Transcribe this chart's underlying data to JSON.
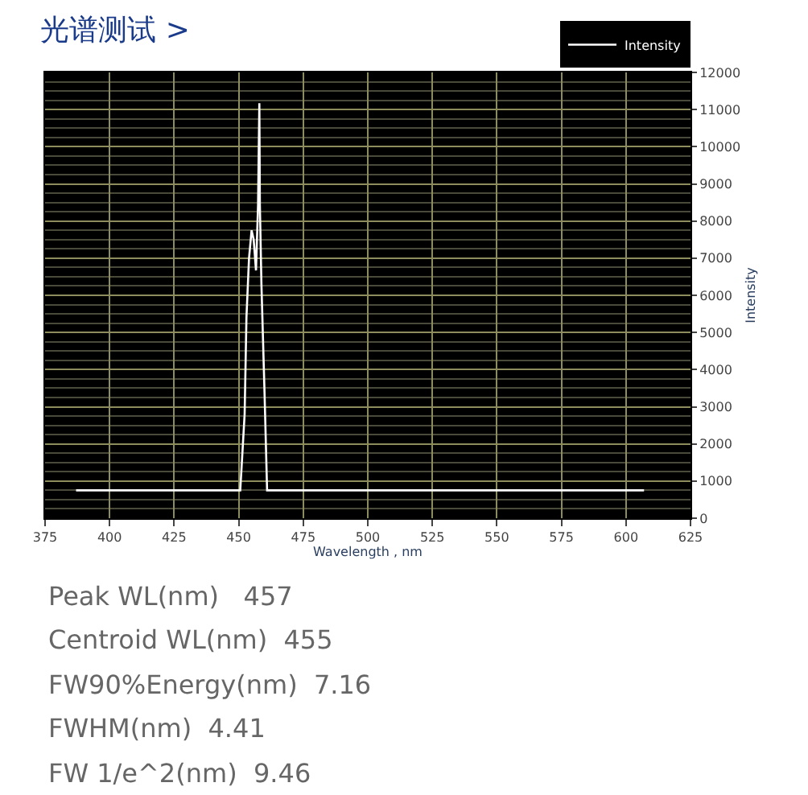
{
  "chart_data": {
    "type": "line",
    "title": "光谱测试 >",
    "xlabel": "Wavelength , nm",
    "ylabel": "Intensity",
    "x": [
      387,
      420,
      445,
      450.6,
      452.3,
      453,
      454,
      455,
      455.8,
      456.7,
      457.5,
      458,
      458.2,
      458.8,
      460,
      461,
      480,
      520,
      560,
      607
    ],
    "series": [
      {
        "name": "Intensity",
        "color": "#ffffff",
        "values": [
          750,
          750,
          750,
          750,
          2800,
          5400,
          7000,
          7750,
          7500,
          6670,
          8440,
          11170,
          8440,
          6300,
          3400,
          750,
          750,
          750,
          750,
          750
        ]
      }
    ],
    "xlim": [
      375,
      625
    ],
    "xticks": [
      375,
      400,
      425,
      450,
      475,
      500,
      525,
      550,
      575,
      600,
      625
    ],
    "ylim": [
      0,
      12000
    ],
    "yticks": [
      0,
      1000,
      2000,
      3000,
      4000,
      5000,
      6000,
      7000,
      8000,
      9000,
      10000,
      11000,
      12000
    ],
    "grid": true,
    "legend": "top right",
    "marker": "none",
    "line_style": "solid",
    "annotations": [
      "Peak WL(nm)   457",
      "Centroid WL(nm)  455",
      "FW90%Energy(nm)  7.16",
      "FWHM(nm)  4.41",
      "FW 1/e^2(nm)  9.46"
    ]
  }
}
